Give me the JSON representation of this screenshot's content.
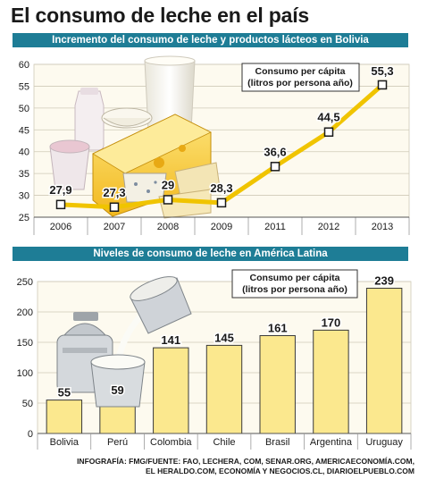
{
  "title": "El consumo de leche en el país",
  "footer": {
    "line1": "INFOGRAFÍA: FMG/FUENTE: FAO, LECHERA, COM, SENAR.ORG, AMERICAECONOMÍA.COM,",
    "line2": "EL HERALDO.COM, ECONOMÍA Y NEGOCIOS.CL, DIARIOELPUEBLO.COM"
  },
  "colors": {
    "banner": "#1e7d96",
    "line": "#f0c400",
    "bar_fill": "#fbe88e",
    "bar_stroke": "#3a3a3a",
    "point_fill": "#ffffff",
    "plot_bg": "#fdfaef"
  },
  "chart_data": [
    {
      "type": "line",
      "title": "Incremento del consumo de leche y productos lácteos en Bolivia",
      "annotation": "Consumo per cápita (litros por persona año)",
      "x": [
        "2006",
        "2007",
        "2008",
        "2009",
        "2011",
        "2012",
        "2013"
      ],
      "series": [
        {
          "values": [
            27.9,
            27.3,
            29,
            28.3,
            36.6,
            44.5,
            55.3
          ]
        }
      ],
      "labels": [
        "27,9",
        "27,3",
        "29",
        "28,3",
        "36,6",
        "44,5",
        "55,3"
      ],
      "ylim": [
        25,
        60
      ],
      "yticks": [
        25,
        30,
        35,
        40,
        45,
        50,
        55,
        60
      ],
      "grid": true
    },
    {
      "type": "bar",
      "title": "Niveles de consumo de leche en América Latina",
      "annotation": "Consumo per cápita (litros por persona año)",
      "categories": [
        "Bolivia",
        "Perú",
        "Colombia",
        "Chile",
        "Brasil",
        "Argentina",
        "Uruguay"
      ],
      "values": [
        55,
        59,
        141,
        145,
        161,
        170,
        239
      ],
      "ylim": [
        0,
        250
      ],
      "yticks": [
        0,
        50,
        100,
        150,
        200,
        250
      ],
      "grid": true
    }
  ]
}
